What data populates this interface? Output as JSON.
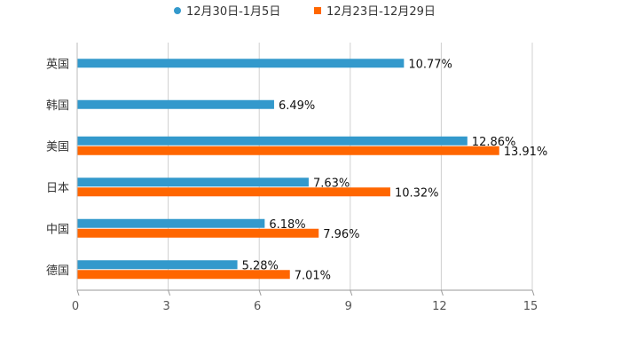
{
  "chart_data": {
    "type": "bar",
    "orientation": "horizontal",
    "categories": [
      "英国",
      "韩国",
      "美国",
      "日本",
      "中国",
      "德国"
    ],
    "series": [
      {
        "name": "12月30日-1月5日",
        "color": "#3399cc",
        "values": [
          10.77,
          6.49,
          12.86,
          7.63,
          6.18,
          5.28
        ],
        "labels": [
          "10.77%",
          "6.49%",
          "12.86%",
          "7.63%",
          "6.18%",
          "5.28%"
        ]
      },
      {
        "name": "12月23日-12月29日",
        "color": "#ff6600",
        "values": [
          null,
          null,
          13.91,
          10.32,
          7.96,
          7.01
        ],
        "labels": [
          null,
          null,
          "13.91%",
          "10.32%",
          "7.96%",
          "7.01%"
        ]
      }
    ],
    "xlim": [
      0,
      15
    ],
    "xticks": [
      0,
      3,
      6,
      9,
      12,
      15
    ],
    "xtick_labels": [
      "0",
      "3",
      "6",
      "9",
      "12",
      "15"
    ],
    "grid": true,
    "legend_position": "top"
  }
}
